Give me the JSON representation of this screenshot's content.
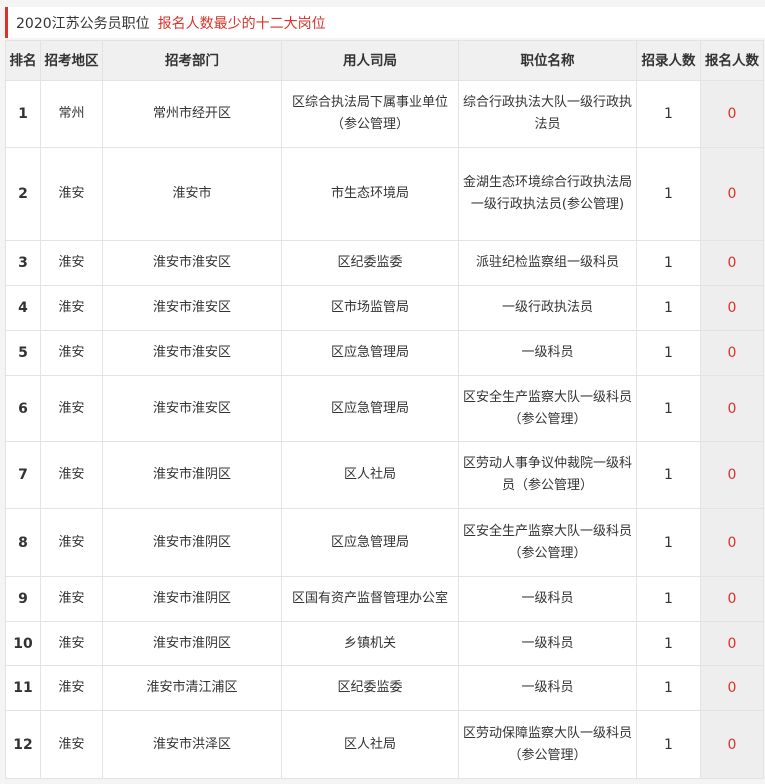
{
  "title": {
    "main": "2020江苏公务员职位",
    "highlight": "报名人数最少的十二大岗位"
  },
  "colors": {
    "accent": "#d9312b"
  },
  "headers": [
    "排名",
    "招考地区",
    "招考部门",
    "用人司局",
    "职位名称",
    "招录人数",
    "报名人数"
  ],
  "rows": [
    {
      "rank": "1",
      "region": "常州",
      "dept": "常州市经开区",
      "bureau": "区综合执法局下属事业单位（参公管理）",
      "position": "综合行政执法大队一级行政执法员",
      "hire": "1",
      "applicants": "0"
    },
    {
      "rank": "2",
      "region": "淮安",
      "dept": "淮安市",
      "bureau": "市生态环境局",
      "position": "金湖生态环境综合行政执法局一级行政执法员(参公管理)",
      "hire": "1",
      "applicants": "0"
    },
    {
      "rank": "3",
      "region": "淮安",
      "dept": "淮安市淮安区",
      "bureau": "区纪委监委",
      "position": "派驻纪检监察组一级科员",
      "hire": "1",
      "applicants": "0"
    },
    {
      "rank": "4",
      "region": "淮安",
      "dept": "淮安市淮安区",
      "bureau": "区市场监管局",
      "position": "一级行政执法员",
      "hire": "1",
      "applicants": "0"
    },
    {
      "rank": "5",
      "region": "淮安",
      "dept": "淮安市淮安区",
      "bureau": "区应急管理局",
      "position": "一级科员",
      "hire": "1",
      "applicants": "0"
    },
    {
      "rank": "6",
      "region": "淮安",
      "dept": "淮安市淮安区",
      "bureau": "区应急管理局",
      "position": "区安全生产监察大队一级科员（参公管理）",
      "hire": "1",
      "applicants": "0"
    },
    {
      "rank": "7",
      "region": "淮安",
      "dept": "淮安市淮阴区",
      "bureau": "区人社局",
      "position": "区劳动人事争议仲裁院一级科员（参公管理）",
      "hire": "1",
      "applicants": "0"
    },
    {
      "rank": "8",
      "region": "淮安",
      "dept": "淮安市淮阴区",
      "bureau": "区应急管理局",
      "position": "区安全生产监察大队一级科员（参公管理）",
      "hire": "1",
      "applicants": "0"
    },
    {
      "rank": "9",
      "region": "淮安",
      "dept": "淮安市淮阴区",
      "bureau": "区国有资产监督管理办公室",
      "position": "一级科员",
      "hire": "1",
      "applicants": "0"
    },
    {
      "rank": "10",
      "region": "淮安",
      "dept": "淮安市淮阴区",
      "bureau": "乡镇机关",
      "position": "一级科员",
      "hire": "1",
      "applicants": "0"
    },
    {
      "rank": "11",
      "region": "淮安",
      "dept": "淮安市清江浦区",
      "bureau": "区纪委监委",
      "position": "一级科员",
      "hire": "1",
      "applicants": "0"
    },
    {
      "rank": "12",
      "region": "淮安",
      "dept": "淮安市洪泽区",
      "bureau": "区人社局",
      "position": "区劳动保障监察大队一级科员（参公管理）",
      "hire": "1",
      "applicants": "0"
    }
  ]
}
